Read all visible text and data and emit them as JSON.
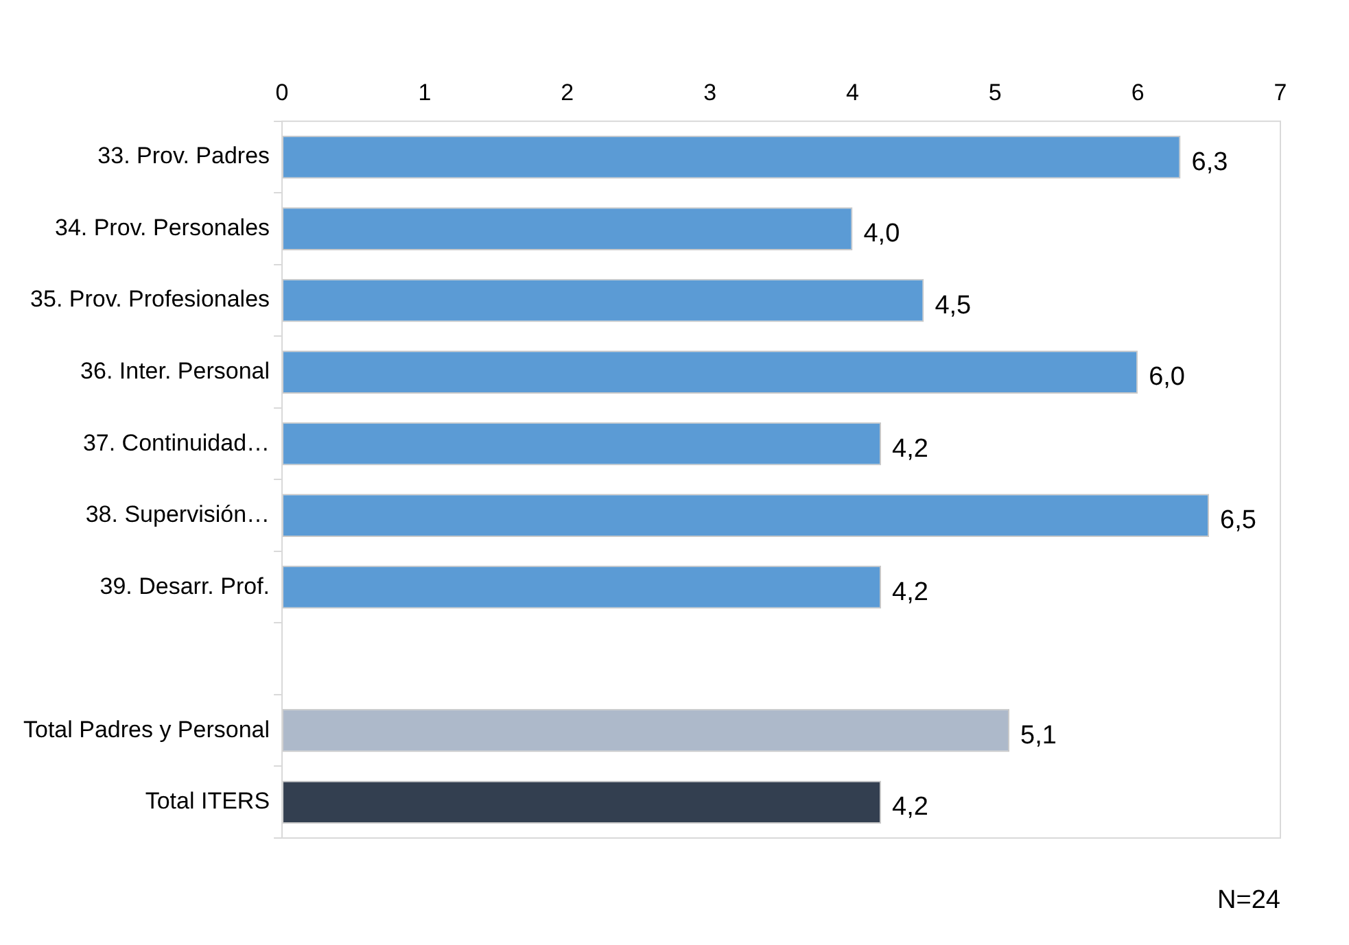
{
  "chart_data": {
    "type": "bar",
    "orientation": "horizontal",
    "categories": [
      "33. Prov. Padres",
      "34. Prov. Personales",
      "35. Prov. Profesionales",
      "36. Inter. Personal",
      "37. Continuidad…",
      "38. Supervisión…",
      "39. Desarr. Prof.",
      null,
      "Total Padres y Personal",
      "Total ITERS"
    ],
    "values": [
      6.3,
      4.0,
      4.5,
      6.0,
      4.2,
      6.5,
      4.2,
      null,
      5.1,
      4.2
    ],
    "colors": [
      "#5b9bd5",
      "#5b9bd5",
      "#5b9bd5",
      "#5b9bd5",
      "#5b9bd5",
      "#5b9bd5",
      "#5b9bd5",
      "#5b9bd5",
      "#adb9ca",
      "#333f50"
    ],
    "value_labels": [
      "6,3",
      "4,0",
      "4,5",
      "6,0",
      "4,2",
      "6,5",
      "4,2",
      null,
      "5,1",
      "4,2"
    ],
    "xlim": [
      0,
      7
    ],
    "xticks": [
      0,
      1,
      2,
      3,
      4,
      5,
      6,
      7
    ],
    "grid": false,
    "legend": false,
    "annotations": [
      "N=24"
    ]
  }
}
